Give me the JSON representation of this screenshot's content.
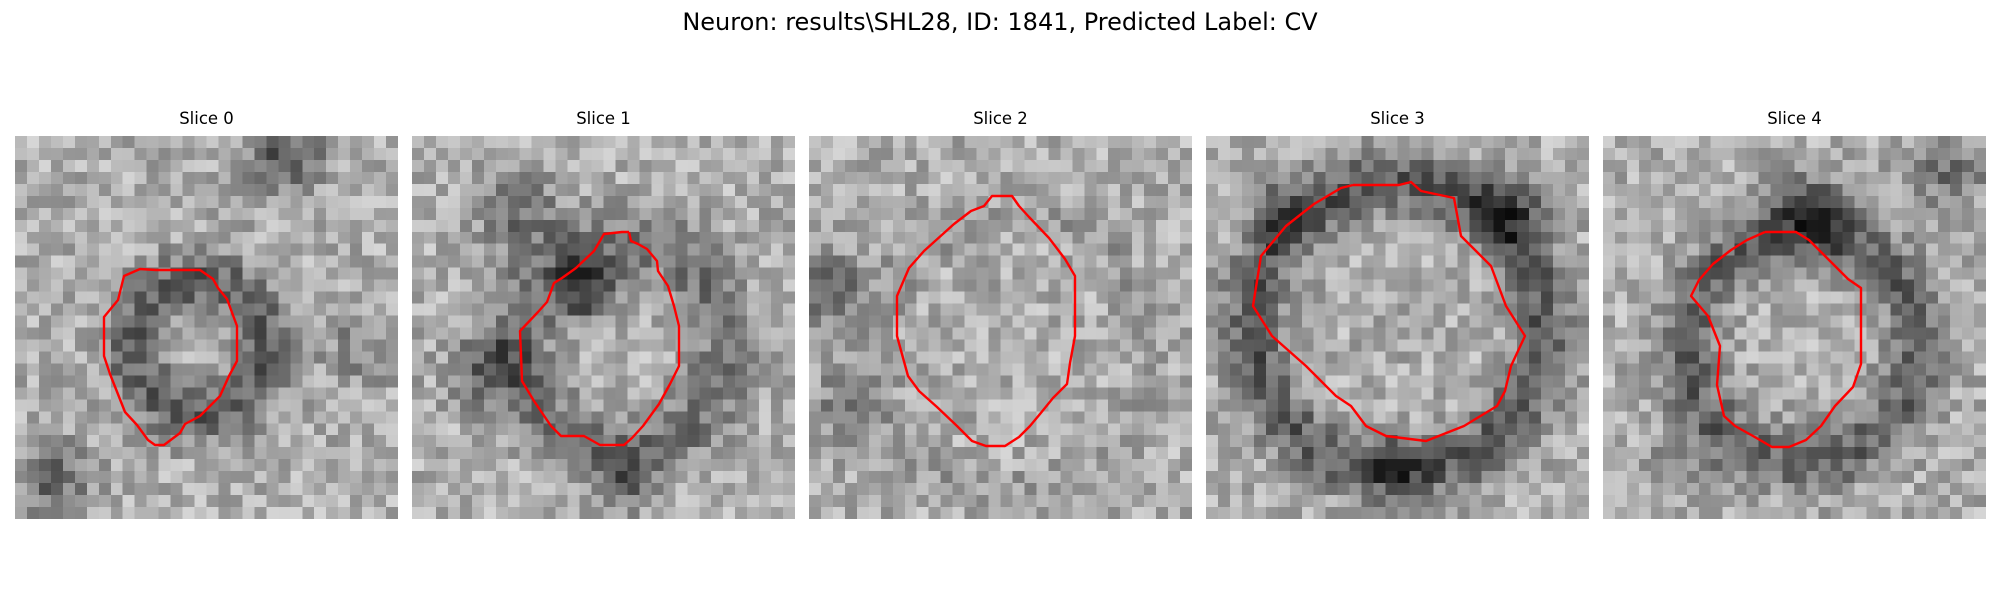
{
  "figure": {
    "title": "Neuron: results\\SHL28, ID: 1841, Predicted Label: CV"
  },
  "contour_color": "#ff0000",
  "slices": [
    {
      "title": "Slice 0"
    },
    {
      "title": "Slice 1"
    },
    {
      "title": "Slice 2"
    },
    {
      "title": "Slice 3"
    },
    {
      "title": "Slice 4"
    }
  ]
}
